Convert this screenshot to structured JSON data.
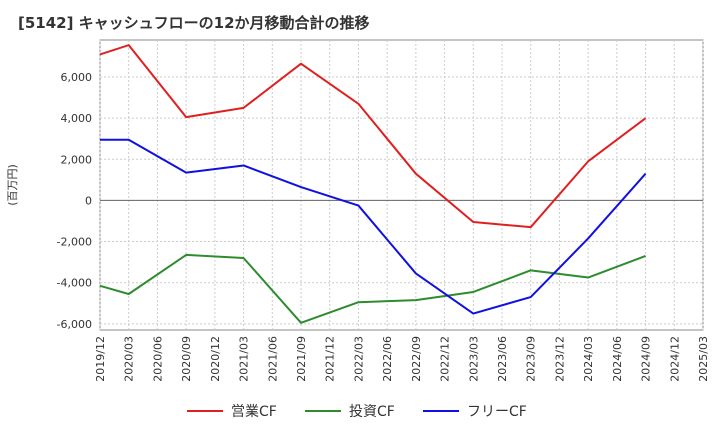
{
  "chart_data": {
    "type": "line",
    "title": "[5142]  キャッシュフローの12か月移動合計の推移",
    "ylabel": "(百万円)",
    "xlabel": "",
    "ylim": [
      -6300,
      7800
    ],
    "yticks": [
      6000,
      4000,
      2000,
      0,
      -2000,
      -4000,
      -6000
    ],
    "ytick_labels": [
      "6,000",
      "4,000",
      "2,000",
      "0",
      "-2,000",
      "-4,000",
      "-6,000"
    ],
    "x_tick_labels": [
      "2019/12",
      "2020/03",
      "2020/06",
      "2020/09",
      "2020/12",
      "2021/03",
      "2021/06",
      "2021/09",
      "2021/12",
      "2022/03",
      "2022/06",
      "2022/09",
      "2022/12",
      "2023/03",
      "2023/06",
      "2023/09",
      "2023/12",
      "2024/03",
      "2024/06",
      "2024/09",
      "2024/12",
      "2025/03"
    ],
    "grid": true,
    "legend_position": "bottom-center",
    "series": [
      {
        "name": "営業CF",
        "color": "#e02020",
        "points": [
          {
            "x": "2019/12",
            "y": 7100
          },
          {
            "x": "2020/03",
            "y": 7550
          },
          {
            "x": "2020/09",
            "y": 4050
          },
          {
            "x": "2021/03",
            "y": 4500
          },
          {
            "x": "2021/09",
            "y": 6650
          },
          {
            "x": "2022/03",
            "y": 4700
          },
          {
            "x": "2022/09",
            "y": 1300
          },
          {
            "x": "2023/03",
            "y": -1050
          },
          {
            "x": "2023/09",
            "y": -1300
          },
          {
            "x": "2024/03",
            "y": 1900
          },
          {
            "x": "2024/09",
            "y": 4000
          }
        ]
      },
      {
        "name": "投資CF",
        "color": "#2e8b2e",
        "points": [
          {
            "x": "2019/12",
            "y": -4150
          },
          {
            "x": "2020/03",
            "y": -4550
          },
          {
            "x": "2020/09",
            "y": -2650
          },
          {
            "x": "2021/03",
            "y": -2800
          },
          {
            "x": "2021/09",
            "y": -5950
          },
          {
            "x": "2022/03",
            "y": -4950
          },
          {
            "x": "2022/09",
            "y": -4850
          },
          {
            "x": "2023/03",
            "y": -4450
          },
          {
            "x": "2023/09",
            "y": -3400
          },
          {
            "x": "2024/03",
            "y": -3750
          },
          {
            "x": "2024/09",
            "y": -2700
          }
        ]
      },
      {
        "name": "フリーCF",
        "color": "#1010e0",
        "points": [
          {
            "x": "2019/12",
            "y": 2950
          },
          {
            "x": "2020/03",
            "y": 2950
          },
          {
            "x": "2020/09",
            "y": 1350
          },
          {
            "x": "2021/03",
            "y": 1700
          },
          {
            "x": "2021/09",
            "y": 650
          },
          {
            "x": "2022/03",
            "y": -250
          },
          {
            "x": "2022/09",
            "y": -3550
          },
          {
            "x": "2023/03",
            "y": -5500
          },
          {
            "x": "2023/09",
            "y": -4700
          },
          {
            "x": "2024/03",
            "y": -1850
          },
          {
            "x": "2024/09",
            "y": 1300
          }
        ]
      }
    ]
  }
}
